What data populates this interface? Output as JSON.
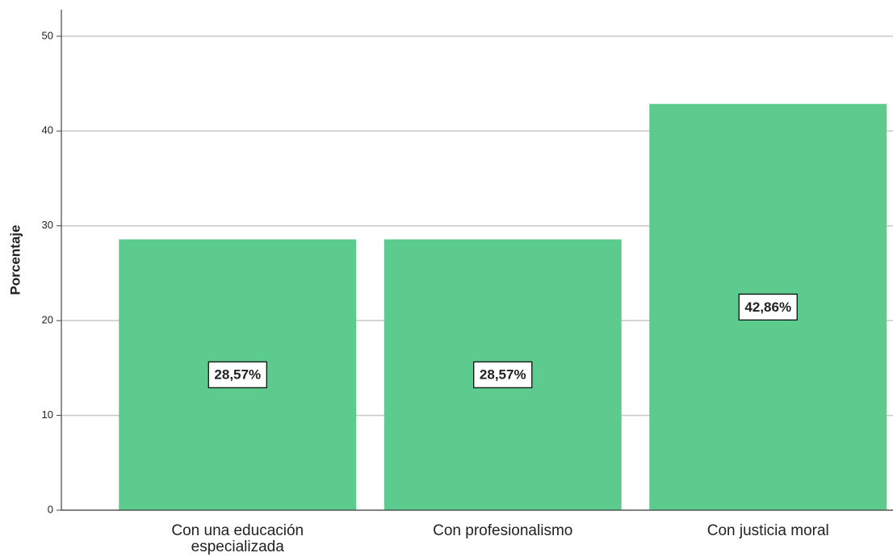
{
  "chart_data": {
    "type": "bar",
    "ylabel": "Porcentaje",
    "categories": [
      "Con una educación especializada",
      "Con profesionalismo",
      "Con justicia moral"
    ],
    "values": [
      28.57,
      28.57,
      42.86
    ],
    "value_labels": [
      "28,57%",
      "28,57%",
      "42,86%"
    ],
    "color": "#5ccb8d",
    "ylim": [
      0,
      52.8
    ],
    "yticks": [
      0,
      10,
      20,
      30,
      40,
      50
    ],
    "grid": true
  }
}
